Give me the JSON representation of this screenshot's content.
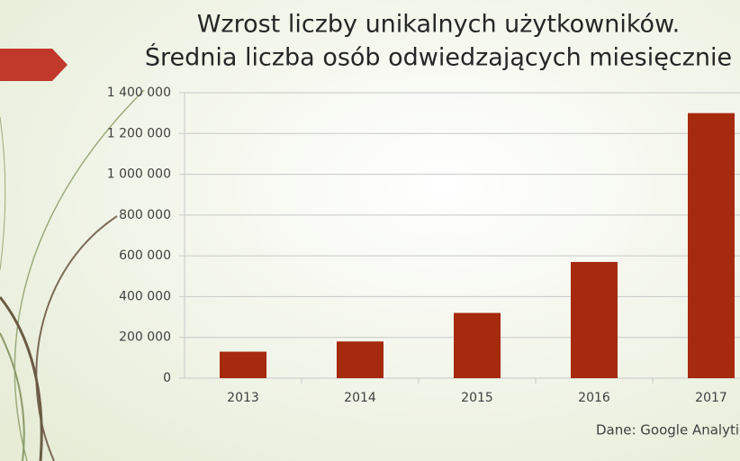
{
  "chart_data": {
    "type": "bar",
    "title": "Wzrost liczby unikalnych użytkowników.",
    "subtitle": "Średnia liczba osób odwiedzających miesięcznie",
    "source": "Dane: Google Analytics",
    "categories": [
      "2013",
      "2014",
      "2015",
      "2016",
      "2017"
    ],
    "values": [
      130000,
      180000,
      320000,
      570000,
      1300000
    ],
    "color": "#a52a0e",
    "ylim": [
      0,
      1400000
    ],
    "yticks": [
      0,
      {
        "value": 200000,
        "label": "200 000"
      },
      {
        "value": 400000,
        "label": "400 000"
      },
      {
        "value": 600000,
        "label": "600 000"
      },
      {
        "value": 800000,
        "label": "800 000"
      },
      {
        "value": 1000000,
        "label": "1 000 000"
      },
      {
        "value": 1200000,
        "label": "1 200 000"
      },
      {
        "value": 1400000,
        "label": "1 400 000"
      }
    ],
    "grid": true
  }
}
